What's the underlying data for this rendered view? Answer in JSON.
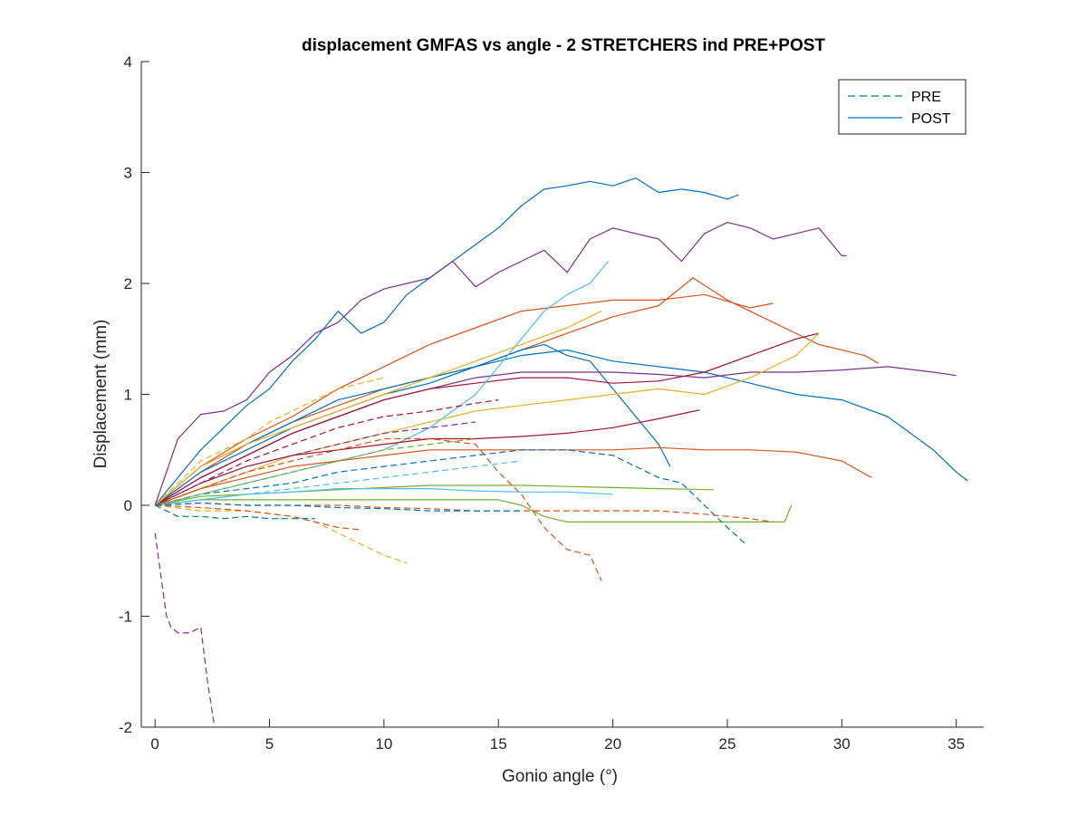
{
  "chart_data": {
    "type": "line",
    "title": "displacement GMFAS vs angle - 2 STRETCHERS ind PRE+POST",
    "xlabel": "Gonio angle (°)",
    "ylabel": "Displacement (mm)",
    "xlim": [
      -0.6,
      36.2
    ],
    "ylim": [
      -2,
      4
    ],
    "xticks": [
      0,
      5,
      10,
      15,
      20,
      25,
      30,
      35
    ],
    "yticks": [
      -2,
      -1,
      0,
      1,
      2,
      3,
      4
    ],
    "legend": {
      "location": "top-right",
      "entries": [
        {
          "label": "PRE",
          "style": "dashed",
          "color": "#0072BD"
        },
        {
          "label": "POST",
          "style": "solid",
          "color": "#0072BD"
        }
      ]
    },
    "series": [
      {
        "name": "POST 1",
        "condition": "POST",
        "color": "#0072BD",
        "x": [
          0,
          1,
          2,
          3,
          4,
          5,
          6,
          7,
          8,
          9,
          10,
          11,
          12,
          13,
          14,
          15,
          16,
          17,
          18,
          19,
          20,
          21,
          22,
          23,
          24,
          25,
          25.5
        ],
        "y": [
          0,
          0.25,
          0.5,
          0.7,
          0.9,
          1.05,
          1.3,
          1.5,
          1.75,
          1.55,
          1.65,
          1.9,
          2.05,
          2.2,
          2.35,
          2.5,
          2.7,
          2.85,
          2.88,
          2.92,
          2.88,
          2.95,
          2.82,
          2.85,
          2.82,
          2.76,
          2.8
        ]
      },
      {
        "name": "POST 2",
        "condition": "POST",
        "color": "#7E2F8E",
        "x": [
          0,
          1,
          2,
          3,
          4,
          5,
          6,
          7,
          8,
          9,
          10,
          11,
          12,
          13,
          14,
          15,
          16,
          17,
          18,
          19,
          20,
          21,
          22,
          23,
          24,
          25,
          26,
          27,
          28,
          29,
          30,
          30.2
        ],
        "y": [
          0,
          0.6,
          0.82,
          0.85,
          0.95,
          1.2,
          1.35,
          1.55,
          1.65,
          1.85,
          1.95,
          2.0,
          2.05,
          2.2,
          1.97,
          2.1,
          2.2,
          2.3,
          2.1,
          2.4,
          2.5,
          2.45,
          2.4,
          2.2,
          2.45,
          2.55,
          2.5,
          2.4,
          2.45,
          2.5,
          2.25,
          2.25
        ]
      },
      {
        "name": "POST 3",
        "condition": "POST",
        "color": "#D95319",
        "x": [
          0,
          2,
          4,
          6,
          8,
          10,
          12,
          14,
          16,
          18,
          20,
          22,
          24,
          26,
          27
        ],
        "y": [
          0,
          0.35,
          0.6,
          0.8,
          1.05,
          1.25,
          1.45,
          1.6,
          1.75,
          1.8,
          1.85,
          1.85,
          1.9,
          1.78,
          1.82
        ]
      },
      {
        "name": "POST 4",
        "condition": "POST",
        "color": "#D95319",
        "x": [
          0,
          2,
          4,
          6,
          8,
          10,
          12,
          14,
          16,
          18,
          20,
          22,
          23.5,
          25,
          27,
          29,
          31,
          31.6
        ],
        "y": [
          0,
          0.3,
          0.55,
          0.75,
          0.9,
          1.05,
          1.15,
          1.25,
          1.4,
          1.55,
          1.7,
          1.8,
          2.05,
          1.85,
          1.65,
          1.45,
          1.35,
          1.28
        ]
      },
      {
        "name": "POST 5",
        "condition": "POST",
        "color": "#0072BD",
        "x": [
          0,
          2,
          4,
          6,
          8,
          10,
          12,
          14,
          16,
          18,
          20,
          22,
          24,
          26,
          28,
          30,
          32,
          33,
          34,
          35,
          35.5
        ],
        "y": [
          0,
          0.35,
          0.55,
          0.75,
          0.95,
          1.05,
          1.15,
          1.25,
          1.35,
          1.4,
          1.3,
          1.25,
          1.2,
          1.1,
          1.0,
          0.95,
          0.8,
          0.65,
          0.5,
          0.3,
          0.22
        ]
      },
      {
        "name": "POST 6",
        "condition": "POST",
        "color": "#0072BD",
        "x": [
          0,
          2,
          4,
          6,
          8,
          10,
          12,
          14,
          16,
          17,
          18,
          19,
          20,
          21,
          22,
          22.5
        ],
        "y": [
          0,
          0.3,
          0.5,
          0.7,
          0.85,
          1.0,
          1.1,
          1.25,
          1.4,
          1.45,
          1.35,
          1.3,
          1.05,
          0.8,
          0.55,
          0.35
        ]
      },
      {
        "name": "POST 7",
        "condition": "POST",
        "color": "#7E2F8E",
        "x": [
          0,
          2,
          4,
          6,
          8,
          10,
          12,
          14,
          16,
          18,
          20,
          22,
          24,
          26,
          28,
          30,
          32,
          34,
          35
        ],
        "y": [
          0,
          0.25,
          0.45,
          0.65,
          0.8,
          0.95,
          1.05,
          1.15,
          1.2,
          1.2,
          1.2,
          1.18,
          1.15,
          1.2,
          1.2,
          1.22,
          1.25,
          1.2,
          1.17
        ]
      },
      {
        "name": "POST 8",
        "condition": "POST",
        "color": "#A2142F",
        "x": [
          0,
          2,
          4,
          6,
          8,
          10,
          12,
          14,
          16,
          18,
          20,
          22,
          24,
          26,
          28,
          29
        ],
        "y": [
          0,
          0.25,
          0.45,
          0.65,
          0.8,
          0.95,
          1.05,
          1.1,
          1.15,
          1.15,
          1.1,
          1.12,
          1.2,
          1.35,
          1.5,
          1.55
        ]
      },
      {
        "name": "POST 9",
        "condition": "POST",
        "color": "#EDB120",
        "x": [
          0,
          2,
          4,
          6,
          8,
          10,
          12,
          14,
          16,
          18,
          20,
          22,
          24,
          26,
          28,
          29
        ],
        "y": [
          0,
          0.15,
          0.3,
          0.45,
          0.55,
          0.65,
          0.75,
          0.85,
          0.9,
          0.95,
          1.0,
          1.05,
          1.0,
          1.15,
          1.35,
          1.55
        ]
      },
      {
        "name": "POST 10",
        "condition": "POST",
        "color": "#4DBEEE",
        "x": [
          0,
          2,
          4,
          6,
          8,
          10,
          12,
          13,
          14,
          15,
          16,
          17,
          18,
          19,
          19.8
        ],
        "y": [
          0,
          0.1,
          0.2,
          0.3,
          0.4,
          0.5,
          0.7,
          0.85,
          1.0,
          1.25,
          1.5,
          1.75,
          1.9,
          2.0,
          2.2
        ]
      },
      {
        "name": "POST 11",
        "condition": "POST",
        "color": "#EDB120",
        "x": [
          0,
          2,
          4,
          6,
          8,
          10,
          12,
          14,
          16,
          18,
          19.5
        ],
        "y": [
          0,
          0.35,
          0.55,
          0.7,
          0.85,
          1.0,
          1.15,
          1.3,
          1.45,
          1.6,
          1.75
        ]
      },
      {
        "name": "POST 12",
        "condition": "POST",
        "color": "#A2142F",
        "x": [
          0,
          2,
          4,
          6,
          8,
          10,
          12,
          14,
          16,
          18,
          20,
          22,
          23.8
        ],
        "y": [
          0,
          0.2,
          0.35,
          0.45,
          0.5,
          0.55,
          0.6,
          0.6,
          0.62,
          0.65,
          0.7,
          0.78,
          0.86
        ]
      },
      {
        "name": "POST 13",
        "condition": "POST",
        "color": "#D95319",
        "x": [
          0,
          2,
          4,
          6,
          8,
          10,
          12,
          14,
          16,
          18,
          20,
          22,
          24,
          26,
          28,
          30,
          31.3
        ],
        "y": [
          0,
          0.15,
          0.25,
          0.35,
          0.4,
          0.45,
          0.5,
          0.5,
          0.5,
          0.5,
          0.5,
          0.52,
          0.5,
          0.5,
          0.48,
          0.4,
          0.25
        ]
      },
      {
        "name": "POST 14",
        "condition": "POST",
        "color": "#77AC30",
        "x": [
          0,
          2,
          4,
          6,
          8,
          10,
          12,
          14,
          15,
          16,
          17,
          18,
          20,
          22,
          24,
          26,
          27.5,
          27.8
        ],
        "y": [
          0,
          0.05,
          0.05,
          0.05,
          0.05,
          0.05,
          0.05,
          0.05,
          0.05,
          0.0,
          -0.1,
          -0.15,
          -0.15,
          -0.15,
          -0.15,
          -0.15,
          -0.15,
          0.0
        ]
      },
      {
        "name": "POST 15",
        "condition": "POST",
        "color": "#77AC30",
        "x": [
          0,
          2,
          4,
          6,
          8,
          10,
          12,
          14,
          16,
          18,
          20,
          22,
          24.4
        ],
        "y": [
          0,
          0.08,
          0.1,
          0.12,
          0.14,
          0.16,
          0.18,
          0.18,
          0.18,
          0.17,
          0.16,
          0.15,
          0.14
        ]
      },
      {
        "name": "POST 16",
        "condition": "POST",
        "color": "#4DBEEE",
        "x": [
          0,
          2,
          4,
          6,
          8,
          10,
          12,
          14,
          16,
          18,
          20
        ],
        "y": [
          0,
          0.05,
          0.1,
          0.12,
          0.15,
          0.15,
          0.15,
          0.13,
          0.12,
          0.12,
          0.1
        ]
      },
      {
        "name": "PRE 1",
        "condition": "PRE",
        "color": "#0072BD",
        "x": [
          0,
          2,
          4,
          6,
          8,
          10,
          12,
          14,
          16,
          18,
          20,
          22,
          23,
          24,
          25,
          25.8
        ],
        "y": [
          0,
          0.1,
          0.15,
          0.2,
          0.3,
          0.35,
          0.4,
          0.45,
          0.5,
          0.5,
          0.45,
          0.25,
          0.2,
          0.0,
          -0.2,
          -0.35
        ]
      },
      {
        "name": "PRE 2",
        "condition": "PRE",
        "color": "#D95319",
        "x": [
          0,
          2,
          4,
          6,
          8,
          10,
          12,
          14,
          15,
          16,
          17,
          18,
          19,
          19.5
        ],
        "y": [
          0,
          0.15,
          0.3,
          0.4,
          0.5,
          0.6,
          0.6,
          0.55,
          0.3,
          0.1,
          -0.2,
          -0.4,
          -0.45,
          -0.68
        ]
      },
      {
        "name": "PRE 3",
        "condition": "PRE",
        "color": "#7E2F8E",
        "x": [
          0,
          0.3,
          0.5,
          0.7,
          1.0,
          1.5,
          2.0,
          2.3,
          2.6
        ],
        "y": [
          -0.25,
          -0.7,
          -1.0,
          -1.1,
          -1.15,
          -1.15,
          -1.1,
          -1.6,
          -2.0
        ]
      },
      {
        "name": "PRE 4",
        "condition": "PRE",
        "color": "#EDB120",
        "x": [
          0,
          2,
          4,
          6,
          7,
          8,
          9,
          10,
          11
        ],
        "y": [
          0,
          -0.05,
          -0.05,
          -0.1,
          -0.15,
          -0.25,
          -0.35,
          -0.45,
          -0.52
        ]
      },
      {
        "name": "PRE 5",
        "condition": "PRE",
        "color": "#D95319",
        "x": [
          0,
          2,
          4,
          6,
          7,
          8,
          9
        ],
        "y": [
          0,
          -0.02,
          -0.05,
          -0.1,
          -0.15,
          -0.2,
          -0.22
        ]
      },
      {
        "name": "PRE 6",
        "condition": "PRE",
        "color": "#0072BD",
        "x": [
          0,
          1,
          2,
          3,
          4,
          5,
          6,
          7
        ],
        "y": [
          0,
          -0.1,
          -0.1,
          -0.12,
          -0.1,
          -0.12,
          -0.12,
          -0.12
        ]
      },
      {
        "name": "PRE 7",
        "condition": "PRE",
        "color": "#EDB120",
        "x": [
          0,
          1,
          2,
          3,
          4,
          5,
          6,
          7,
          8,
          9,
          10
        ],
        "y": [
          0,
          0.2,
          0.4,
          0.5,
          0.6,
          0.75,
          0.85,
          0.95,
          1.05,
          1.1,
          1.15
        ]
      },
      {
        "name": "PRE 8",
        "condition": "PRE",
        "color": "#A2142F",
        "x": [
          0,
          2,
          4,
          6,
          8,
          10,
          12,
          14,
          15
        ],
        "y": [
          0,
          0.2,
          0.4,
          0.55,
          0.7,
          0.8,
          0.85,
          0.92,
          0.95
        ]
      },
      {
        "name": "PRE 9",
        "condition": "PRE",
        "color": "#7E2F8E",
        "x": [
          0,
          2,
          4,
          6,
          8,
          10,
          12,
          14
        ],
        "y": [
          0,
          0.2,
          0.35,
          0.45,
          0.55,
          0.65,
          0.7,
          0.75
        ]
      },
      {
        "name": "PRE 10",
        "condition": "PRE",
        "color": "#77AC30",
        "x": [
          0,
          2,
          4,
          6,
          8,
          10,
          12,
          14
        ],
        "y": [
          0,
          0.1,
          0.2,
          0.3,
          0.4,
          0.5,
          0.55,
          0.6
        ]
      },
      {
        "name": "PRE 11",
        "condition": "PRE",
        "color": "#4DBEEE",
        "x": [
          0,
          2,
          4,
          6,
          8,
          10,
          12,
          14,
          16
        ],
        "y": [
          0,
          0.05,
          0.1,
          0.15,
          0.2,
          0.25,
          0.3,
          0.35,
          0.4
        ]
      },
      {
        "name": "PRE 12",
        "condition": "PRE",
        "color": "#D95319",
        "x": [
          0,
          2,
          4,
          6,
          8,
          10,
          12,
          14,
          16,
          18,
          20,
          22,
          24,
          26,
          27
        ],
        "y": [
          0,
          0.02,
          0.0,
          0.0,
          0.0,
          -0.02,
          -0.03,
          -0.05,
          -0.05,
          -0.05,
          -0.05,
          -0.05,
          -0.08,
          -0.12,
          -0.15
        ]
      },
      {
        "name": "PRE 13",
        "condition": "PRE",
        "color": "#0072BD",
        "x": [
          0,
          2,
          4,
          6,
          8,
          10,
          12,
          14,
          16
        ],
        "y": [
          0,
          0.02,
          0.0,
          0.0,
          -0.02,
          -0.03,
          -0.05,
          -0.05,
          -0.05
        ]
      }
    ]
  }
}
